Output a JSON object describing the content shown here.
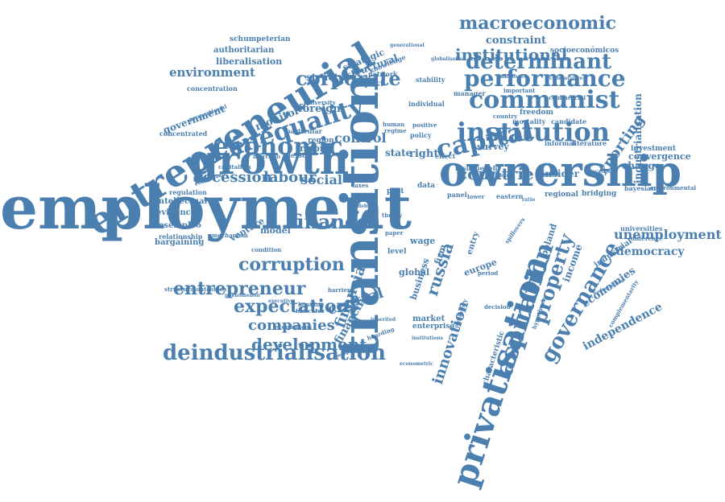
{
  "color": "#4a7fb0",
  "words": [
    {
      "text": "employment",
      "weight": 100
    },
    {
      "text": "transition",
      "weight": 96
    },
    {
      "text": "growth",
      "weight": 70
    },
    {
      "text": "ownership",
      "weight": 66
    },
    {
      "text": "privatisation",
      "weight": 64
    },
    {
      "text": "entrepreneurial",
      "weight": 62
    },
    {
      "text": "deindustrialisation",
      "weight": 36
    },
    {
      "text": "institution",
      "weight": 44
    },
    {
      "text": "communist",
      "weight": 40
    },
    {
      "text": "performance",
      "weight": 34
    },
    {
      "text": "economic",
      "weight": 42
    },
    {
      "text": "inequality",
      "weight": 40
    },
    {
      "text": "capital",
      "weight": 38
    },
    {
      "text": "corporate",
      "weight": 30
    },
    {
      "text": "determinant",
      "weight": 30
    },
    {
      "text": "macroeconomic",
      "weight": 28
    },
    {
      "text": "institutional",
      "weight": 24
    },
    {
      "text": "finance",
      "weight": 30
    },
    {
      "text": "aspiration",
      "weight": 36
    },
    {
      "text": "governance",
      "weight": 32
    },
    {
      "text": "property",
      "weight": 30
    },
    {
      "text": "corruption",
      "weight": 24
    },
    {
      "text": "expectation",
      "weight": 26
    },
    {
      "text": "development",
      "weight": 24
    },
    {
      "text": "entrepreneur",
      "weight": 24
    },
    {
      "text": "companies",
      "weight": 22
    },
    {
      "text": "unemployment",
      "weight": 18
    },
    {
      "text": "recession",
      "weight": 20
    },
    {
      "text": "labour",
      "weight": 20
    },
    {
      "text": "social",
      "weight": 18
    },
    {
      "text": "control",
      "weight": 18
    },
    {
      "text": "countrie",
      "weight": 22
    },
    {
      "text": "environment",
      "weight": 16
    },
    {
      "text": "russia",
      "weight": 22
    },
    {
      "text": "innovation",
      "weight": 20
    },
    {
      "text": "central",
      "weight": 18
    },
    {
      "text": "financing",
      "weight": 16
    },
    {
      "text": "exporting",
      "weight": 18
    },
    {
      "text": "industrialisation",
      "weight": 14
    },
    {
      "text": "democracy",
      "weight": 14
    },
    {
      "text": "independence",
      "weight": 14
    },
    {
      "text": "economies",
      "weight": 14
    },
    {
      "text": "convergence",
      "weight": 12
    },
    {
      "text": "government",
      "weight": 14
    },
    {
      "text": "liberalisation",
      "weight": 12
    },
    {
      "text": "authoritarian",
      "weight": 10
    },
    {
      "text": "schumpeterian",
      "weight": 9
    },
    {
      "text": "strategic",
      "weight": 12
    },
    {
      "text": "structural",
      "weight": 12
    },
    {
      "text": "structure",
      "weight": 12
    },
    {
      "text": "constraint",
      "weight": 14
    },
    {
      "text": "socioeconómicos",
      "weight": 10
    },
    {
      "text": "monitor",
      "weight": 14
    },
    {
      "text": "foreign",
      "weight": 14
    },
    {
      "text": "concentration",
      "weight": 9
    },
    {
      "text": "concentrated",
      "weight": 9
    },
    {
      "text": "intellectual",
      "weight": 11
    },
    {
      "text": "evidence",
      "weight": 11
    },
    {
      "text": "desempleo",
      "weight": 11
    },
    {
      "text": "relationship",
      "weight": 9
    },
    {
      "text": "bargaining",
      "weight": 11
    },
    {
      "text": "regulation",
      "weight": 9
    },
    {
      "text": "venture",
      "weight": 12
    },
    {
      "text": "model",
      "weight": 12
    },
    {
      "text": "reform",
      "weight": 12
    },
    {
      "text": "region",
      "weight": 10
    },
    {
      "text": "state",
      "weight": 12
    },
    {
      "text": "right",
      "weight": 14
    },
    {
      "text": "effect",
      "weight": 9
    },
    {
      "text": "wage",
      "weight": 12
    },
    {
      "text": "global",
      "weight": 12
    },
    {
      "text": "market",
      "weight": 10
    },
    {
      "text": "enterprise",
      "weight": 9
    },
    {
      "text": "business",
      "weight": 12
    },
    {
      "text": "firm",
      "weight": 12
    },
    {
      "text": "entry",
      "weight": 10
    },
    {
      "text": "europe",
      "weight": 12
    },
    {
      "text": "poland",
      "weight": 12
    },
    {
      "text": "industrial",
      "weight": 10
    },
    {
      "text": "income",
      "weight": 12
    },
    {
      "text": "change",
      "weight": 12
    },
    {
      "text": "investment",
      "weight": 10
    },
    {
      "text": "bayesian",
      "weight": 8
    },
    {
      "text": "universities",
      "weight": 8
    },
    {
      "text": "bridging",
      "weight": 9
    },
    {
      "text": "regional",
      "weight": 9
    },
    {
      "text": "insider",
      "weight": 12
    },
    {
      "text": "eastern",
      "weight": 9
    },
    {
      "text": "survey",
      "weight": 12
    },
    {
      "text": "informal",
      "weight": 9
    },
    {
      "text": "literature",
      "weight": 9
    },
    {
      "text": "result",
      "weight": 9
    },
    {
      "text": "benefit",
      "weight": 9
    },
    {
      "text": "mortality",
      "weight": 9
    },
    {
      "text": "freedom",
      "weight": 10
    },
    {
      "text": "candidate",
      "weight": 9
    },
    {
      "text": "country",
      "weight": 8
    },
    {
      "text": "manager",
      "weight": 9
    },
    {
      "text": "important",
      "weight": 8
    },
    {
      "text": "individual",
      "weight": 9
    },
    {
      "text": "stability",
      "weight": 8
    },
    {
      "text": "positive",
      "weight": 8
    },
    {
      "text": "policy",
      "weight": 9
    },
    {
      "text": "human",
      "weight": 8
    },
    {
      "text": "regime",
      "weight": 8
    },
    {
      "text": "knowledge",
      "weight": 9
    },
    {
      "text": "network",
      "weight": 9
    },
    {
      "text": "impact",
      "weight": 11
    },
    {
      "text": "diversity",
      "weight": 8
    },
    {
      "text": "particular",
      "weight": 9
    },
    {
      "text": "lesson",
      "weight": 9
    },
    {
      "text": "capitalism",
      "weight": 8
    },
    {
      "text": "mercado",
      "weight": 8
    },
    {
      "text": "consistent",
      "weight": 8
    },
    {
      "text": "proportional",
      "weight": 8
    },
    {
      "text": "data",
      "weight": 10
    },
    {
      "text": "panel",
      "weight": 9
    },
    {
      "text": "post",
      "weight": 10
    },
    {
      "text": "taxes",
      "weight": 8
    },
    {
      "text": "level",
      "weight": 10
    },
    {
      "text": "paper",
      "weight": 8
    },
    {
      "text": "theory",
      "weight": 8
    },
    {
      "text": "debt",
      "weight": 7
    },
    {
      "text": "barrier",
      "weight": 8
    },
    {
      "text": "condition",
      "weight": 8
    },
    {
      "text": "mechanism",
      "weight": 8
    },
    {
      "text": "structuraloutcomes",
      "weight": 7
    },
    {
      "text": "phenomenon",
      "weight": 7
    },
    {
      "text": "executive",
      "weight": 7
    },
    {
      "text": "bonding",
      "weight": 8
    },
    {
      "text": "indicator",
      "weight": 8
    },
    {
      "text": "económicos",
      "weight": 8
    },
    {
      "text": "perspective",
      "weight": 7
    },
    {
      "text": "capacity",
      "weight": 9
    },
    {
      "text": "hoarding",
      "weight": 8
    },
    {
      "text": "inherited",
      "weight": 7
    },
    {
      "text": "institutions",
      "weight": 7
    },
    {
      "text": "econometric",
      "weight": 7
    },
    {
      "text": "hypothesis",
      "weight": 8
    },
    {
      "text": "characteristic",
      "weight": 10
    },
    {
      "text": "complementarity",
      "weight": 8
    },
    {
      "text": "difference",
      "weight": 8
    },
    {
      "text": "education",
      "weight": 8
    },
    {
      "text": "environmental",
      "weight": 8
    },
    {
      "text": "hydrocarbon",
      "weight": 7
    },
    {
      "text": "generational",
      "weight": 7
    },
    {
      "text": "commercial",
      "weight": 7
    },
    {
      "text": "comparative",
      "weight": 7
    },
    {
      "text": "businesses",
      "weight": 7
    },
    {
      "text": "globalisation",
      "weight": 7
    },
    {
      "text": "period",
      "weight": 8
    },
    {
      "text": "decision",
      "weight": 8
    },
    {
      "text": "regulatory",
      "weight": 8
    },
    {
      "text": "spillovers",
      "weight": 7
    },
    {
      "text": "financial",
      "weight": 20
    },
    {
      "text": "lower",
      "weight": 8
    },
    {
      "text": "laboral",
      "weight": 7
    },
    {
      "text": "ratio",
      "weight": 7
    }
  ]
}
